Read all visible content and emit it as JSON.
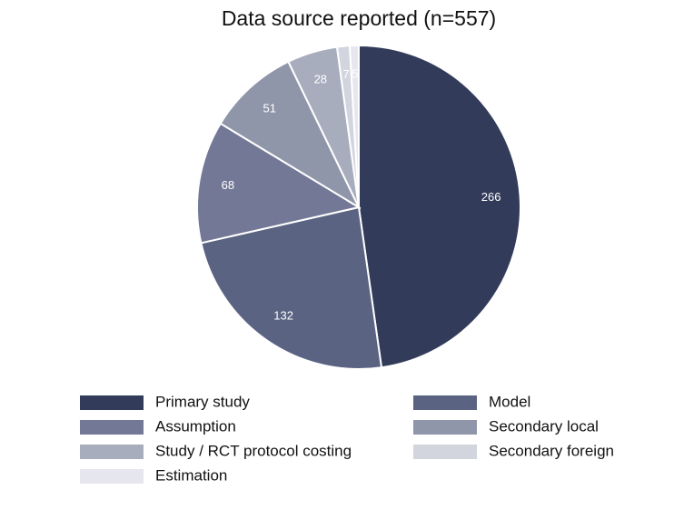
{
  "chart_data": {
    "type": "pie",
    "title": "Data source reported (n=557)",
    "categories": [
      "Primary study",
      "Model",
      "Assumption",
      "Secondary local",
      "Study / RCT protocol costing",
      "Secondary foreign",
      "Estimation"
    ],
    "values": [
      266,
      132,
      68,
      51,
      28,
      7,
      5
    ],
    "colors": [
      "#323c5a",
      "#5a6482",
      "#737896",
      "#9096aa",
      "#a8adbe",
      "#d2d4de",
      "#e6e7ee"
    ],
    "legend": "bottom"
  }
}
